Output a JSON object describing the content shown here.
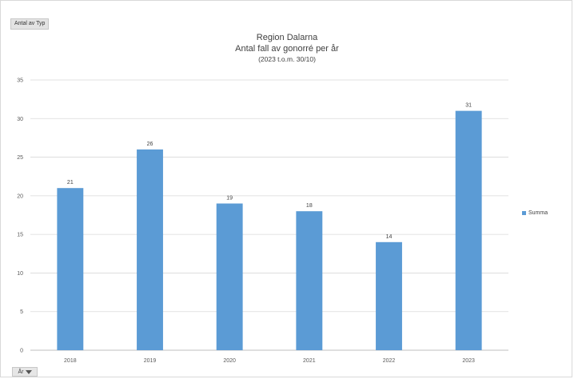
{
  "field_button": {
    "label": "Antal av Typ"
  },
  "filter_button": {
    "label": "År"
  },
  "colors": {
    "bar": "#5b9bd5",
    "grid": "#d9d9d9",
    "axis": "#bfbfbf"
  },
  "chart_data": {
    "type": "bar",
    "title": "Region Dalarna",
    "title_line2": "Antal fall av gonorré per år",
    "subtitle": "(2023 t.o.m. 30/10)",
    "categories": [
      "2018",
      "2019",
      "2020",
      "2021",
      "2022",
      "2023"
    ],
    "series": [
      {
        "name": "Summa",
        "values": [
          21,
          26,
          19,
          18,
          14,
          31
        ]
      }
    ],
    "ylim": [
      0,
      35
    ],
    "yticks": [
      0,
      5,
      10,
      15,
      20,
      25,
      30,
      35
    ],
    "grid": true,
    "legend": "right",
    "data_labels": true
  }
}
